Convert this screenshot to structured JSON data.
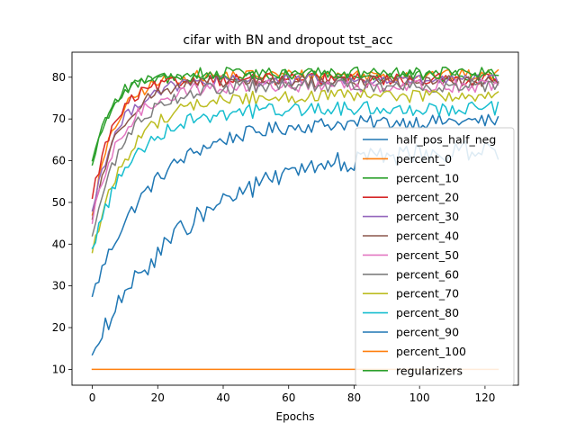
{
  "chart_data": {
    "type": "line",
    "title": "cifar with BN and dropout tst_acc",
    "xlabel": "Epochs",
    "ylabel": "",
    "xlim": [
      -6.2,
      130.2
    ],
    "ylim": [
      6.2,
      86.0
    ],
    "xticks": [
      0,
      20,
      40,
      60,
      80,
      100,
      120
    ],
    "yticks": [
      10,
      20,
      30,
      40,
      50,
      60,
      70,
      80
    ],
    "grid": false,
    "legend": "right",
    "epochs": 125,
    "series": [
      {
        "name": "half_pos_half_neg",
        "color": "#1f77b4",
        "start": 27.5,
        "final": 69.5,
        "tau": 18,
        "noise": 1.1
      },
      {
        "name": "percent_0",
        "color": "#ff7f0e",
        "start": 47.0,
        "final": 80.5,
        "tau": 7,
        "noise": 0.9
      },
      {
        "name": "percent_10",
        "color": "#2ca02c",
        "start": 60.0,
        "final": 80.2,
        "tau": 6,
        "noise": 0.9
      },
      {
        "name": "percent_20",
        "color": "#d62728",
        "start": 51.0,
        "final": 79.5,
        "tau": 7,
        "noise": 0.9
      },
      {
        "name": "percent_30",
        "color": "#9467bd",
        "start": 48.0,
        "final": 79.2,
        "tau": 8,
        "noise": 0.9
      },
      {
        "name": "percent_40",
        "color": "#8c564b",
        "start": 46.0,
        "final": 79.0,
        "tau": 8,
        "noise": 0.9
      },
      {
        "name": "percent_50",
        "color": "#e377c2",
        "start": 45.0,
        "final": 78.0,
        "tau": 9,
        "noise": 1.0
      },
      {
        "name": "percent_60",
        "color": "#7f7f7f",
        "start": 42.0,
        "final": 78.0,
        "tau": 10,
        "noise": 1.0
      },
      {
        "name": "percent_70",
        "color": "#bcbd22",
        "start": 38.0,
        "final": 75.5,
        "tau": 11,
        "noise": 1.0
      },
      {
        "name": "percent_80",
        "color": "#17becf",
        "start": 39.0,
        "final": 72.5,
        "tau": 12,
        "noise": 1.1
      },
      {
        "name": "percent_90",
        "color": "#1f77b4",
        "start": 13.5,
        "final": 63.5,
        "tau": 30,
        "noise": 1.6
      },
      {
        "name": "percent_100",
        "color": "#ff7f0e",
        "start": 10.0,
        "final": 10.0,
        "tau": 1,
        "noise": 0.0
      },
      {
        "name": "regularizers",
        "color": "#2ca02c",
        "start": 59.0,
        "final": 81.0,
        "tau": 6,
        "noise": 0.9
      }
    ]
  }
}
